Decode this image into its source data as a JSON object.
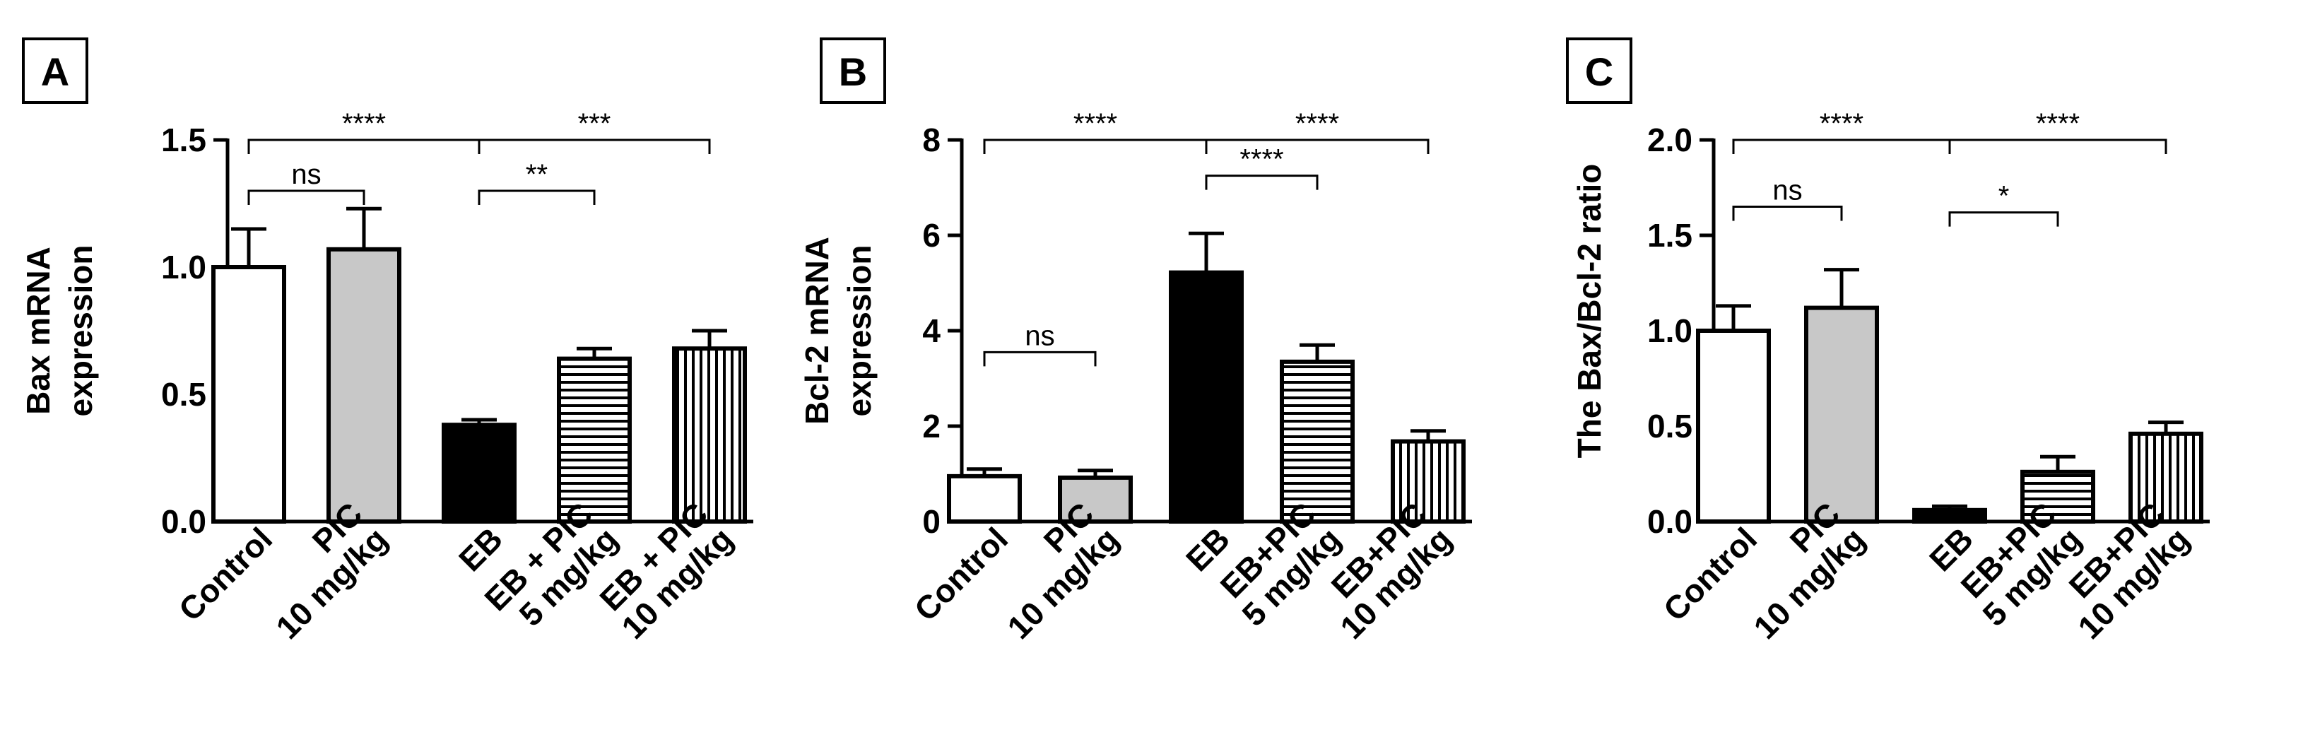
{
  "chart_data": [
    {
      "type": "bar",
      "panel_label": "A",
      "ylabel": [
        "Bax mRNA",
        "expression"
      ],
      "ylim": [
        0,
        1.5
      ],
      "yticks": [
        "0.0",
        "0.5",
        "1.0",
        "1.5"
      ],
      "categories": [
        [
          "Control"
        ],
        [
          "PIC",
          "10 mg/kg"
        ],
        [
          "EB"
        ],
        [
          "EB + PIC",
          "5 mg/kg"
        ],
        [
          "EB + PIC",
          "10 mg/kg"
        ]
      ],
      "values": [
        1.0,
        1.07,
        0.38,
        0.64,
        0.68
      ],
      "errors": [
        0.15,
        0.16,
        0.02,
        0.04,
        0.07
      ],
      "fills": [
        "white",
        "gray",
        "black",
        "hlines",
        "vlines"
      ],
      "significance": [
        {
          "from": 0,
          "to": 2,
          "label": "****",
          "level": 1.5
        },
        {
          "from": 0,
          "to": 1,
          "label": "ns",
          "level": 1.3
        },
        {
          "from": 2,
          "to": 4,
          "label": "***",
          "level": 1.5
        },
        {
          "from": 2,
          "to": 3,
          "label": "**",
          "level": 1.3
        }
      ]
    },
    {
      "type": "bar",
      "panel_label": "B",
      "ylabel": [
        "Bcl-2 mRNA",
        "expression"
      ],
      "ylim": [
        0,
        8
      ],
      "yticks": [
        "0",
        "2",
        "4",
        "6",
        "8"
      ],
      "categories": [
        [
          "Control"
        ],
        [
          "PIC",
          "10 mg/kg"
        ],
        [
          "EB"
        ],
        [
          "EB+PIC",
          "5 mg/kg"
        ],
        [
          "EB+PIC",
          "10 mg/kg"
        ]
      ],
      "values": [
        0.95,
        0.92,
        5.22,
        3.35,
        1.68
      ],
      "errors": [
        0.15,
        0.15,
        0.82,
        0.35,
        0.22
      ],
      "fills": [
        "white",
        "gray",
        "black",
        "hlines",
        "vlines"
      ],
      "significance": [
        {
          "from": 0,
          "to": 2,
          "label": "****",
          "level": 8.0
        },
        {
          "from": 0,
          "to": 1,
          "label": "ns",
          "level": 3.55
        },
        {
          "from": 2,
          "to": 4,
          "label": "****",
          "level": 8.0
        },
        {
          "from": 2,
          "to": 3,
          "label": "****",
          "level": 7.25
        }
      ]
    },
    {
      "type": "bar",
      "panel_label": "C",
      "ylabel": [
        "The Bax/Bcl-2 ratio"
      ],
      "ylim": [
        0,
        2.0
      ],
      "yticks": [
        "0.0",
        "0.5",
        "1.0",
        "1.5",
        "2.0"
      ],
      "categories": [
        [
          "Control"
        ],
        [
          "PIC",
          "10 mg/kg"
        ],
        [
          "EB"
        ],
        [
          "EB+PIC",
          "5 mg/kg"
        ],
        [
          "EB+PIC",
          "10 mg/kg"
        ]
      ],
      "values": [
        1.0,
        1.12,
        0.06,
        0.26,
        0.46
      ],
      "errors": [
        0.13,
        0.2,
        0.02,
        0.08,
        0.06
      ],
      "fills": [
        "white",
        "gray",
        "black",
        "hlines",
        "vlines"
      ],
      "significance": [
        {
          "from": 0,
          "to": 2,
          "label": "****",
          "level": 2.0
        },
        {
          "from": 0,
          "to": 1,
          "label": "ns",
          "level": 1.65
        },
        {
          "from": 2,
          "to": 4,
          "label": "****",
          "level": 2.0
        },
        {
          "from": 2,
          "to": 3,
          "label": "*",
          "level": 1.62
        }
      ]
    }
  ]
}
